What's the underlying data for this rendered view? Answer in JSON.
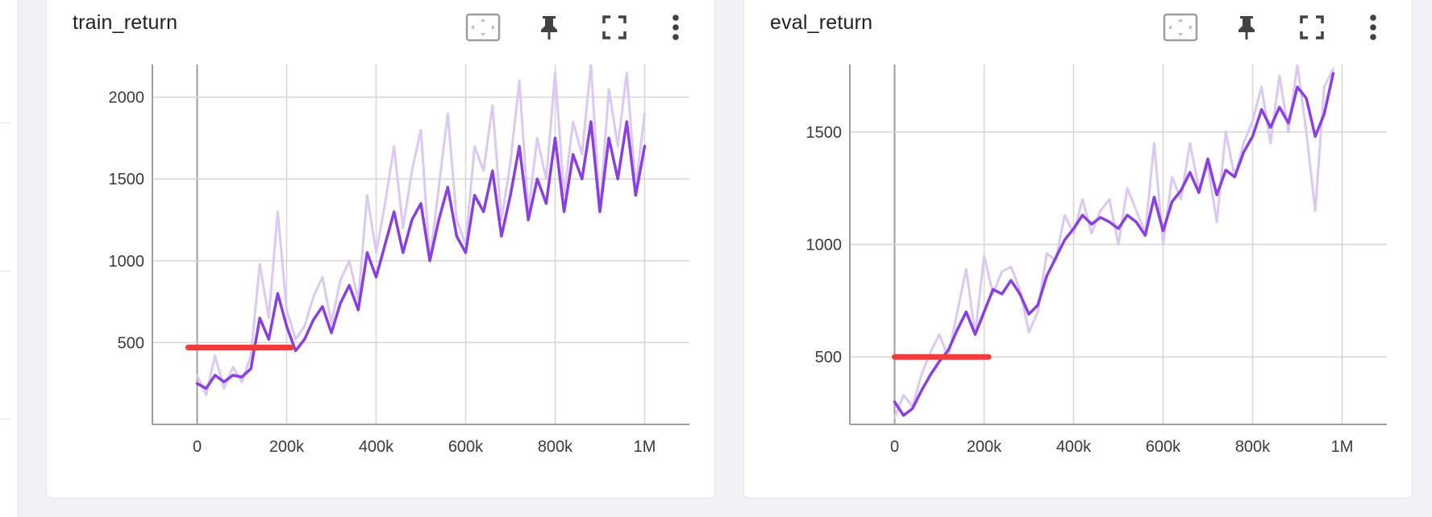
{
  "colors": {
    "raw_series": "#dcc8f4",
    "smoothed_series": "#8a3fe0",
    "annotation": "#f23c3c",
    "grid": "#d6d6d6",
    "axis": "#9e9e9e"
  },
  "toolbar": {
    "icons": [
      "fit-domain-icon",
      "pin-icon",
      "fullscreen-icon",
      "more-vert-icon"
    ]
  },
  "chart_data": [
    {
      "type": "line",
      "title": "train_return",
      "xlabel": "",
      "ylabel": "",
      "xlim": [
        -100000,
        1100000
      ],
      "ylim": [
        0,
        2200
      ],
      "x_ticks": [
        0,
        200000,
        400000,
        600000,
        800000,
        1000000
      ],
      "x_tick_labels": [
        "0",
        "200k",
        "400k",
        "600k",
        "800k",
        "1M"
      ],
      "y_ticks": [
        500,
        1000,
        1500,
        2000
      ],
      "y_tick_labels": [
        "500",
        "1000",
        "1500",
        "2000"
      ],
      "grid": true,
      "series": [
        {
          "role": "raw",
          "x": [
            0,
            20000,
            40000,
            60000,
            80000,
            100000,
            120000,
            140000,
            160000,
            180000,
            200000,
            220000,
            240000,
            260000,
            280000,
            300000,
            320000,
            340000,
            360000,
            380000,
            400000,
            420000,
            440000,
            460000,
            480000,
            500000,
            520000,
            540000,
            560000,
            580000,
            600000,
            620000,
            640000,
            660000,
            680000,
            700000,
            720000,
            740000,
            760000,
            780000,
            800000,
            820000,
            840000,
            860000,
            880000,
            900000,
            920000,
            940000,
            960000,
            980000,
            1000000
          ],
          "y": [
            300,
            180,
            420,
            220,
            350,
            260,
            420,
            980,
            650,
            1300,
            700,
            520,
            600,
            780,
            900,
            620,
            880,
            1000,
            760,
            1400,
            1050,
            1350,
            1700,
            1200,
            1550,
            1800,
            1000,
            1450,
            1900,
            1250,
            1100,
            1700,
            1550,
            1950,
            1250,
            1600,
            2100,
            1300,
            1750,
            1500,
            2150,
            1400,
            1850,
            1650,
            2200,
            1300,
            2050,
            1700,
            2150,
            1450,
            1900
          ]
        },
        {
          "role": "smoothed",
          "x": [
            0,
            20000,
            40000,
            60000,
            80000,
            100000,
            120000,
            140000,
            160000,
            180000,
            200000,
            220000,
            240000,
            260000,
            280000,
            300000,
            320000,
            340000,
            360000,
            380000,
            400000,
            420000,
            440000,
            460000,
            480000,
            500000,
            520000,
            540000,
            560000,
            580000,
            600000,
            620000,
            640000,
            660000,
            680000,
            700000,
            720000,
            740000,
            760000,
            780000,
            800000,
            820000,
            840000,
            860000,
            880000,
            900000,
            920000,
            940000,
            960000,
            980000,
            1000000
          ],
          "y": [
            250,
            220,
            300,
            260,
            300,
            290,
            340,
            650,
            520,
            800,
            600,
            450,
            520,
            640,
            720,
            560,
            740,
            850,
            700,
            1050,
            900,
            1100,
            1300,
            1050,
            1250,
            1350,
            1000,
            1250,
            1450,
            1150,
            1050,
            1400,
            1300,
            1550,
            1150,
            1400,
            1700,
            1250,
            1500,
            1350,
            1750,
            1300,
            1650,
            1500,
            1850,
            1300,
            1750,
            1500,
            1850,
            1400,
            1700
          ]
        }
      ],
      "annotation": {
        "type": "hline",
        "y": 470,
        "x_range": [
          -20000,
          210000
        ]
      }
    },
    {
      "type": "line",
      "title": "eval_return",
      "xlabel": "",
      "ylabel": "",
      "xlim": [
        -100000,
        1100000
      ],
      "ylim": [
        200,
        1800
      ],
      "x_ticks": [
        0,
        200000,
        400000,
        600000,
        800000,
        1000000
      ],
      "x_tick_labels": [
        "0",
        "200k",
        "400k",
        "600k",
        "800k",
        "1M"
      ],
      "y_ticks": [
        500,
        1000,
        1500
      ],
      "y_tick_labels": [
        "500",
        "1000",
        "1500"
      ],
      "grid": true,
      "series": [
        {
          "role": "raw",
          "x": [
            0,
            20000,
            40000,
            60000,
            80000,
            100000,
            120000,
            140000,
            160000,
            180000,
            200000,
            220000,
            240000,
            260000,
            280000,
            300000,
            320000,
            340000,
            360000,
            380000,
            400000,
            420000,
            440000,
            460000,
            480000,
            500000,
            520000,
            540000,
            560000,
            580000,
            600000,
            620000,
            640000,
            660000,
            680000,
            700000,
            720000,
            740000,
            760000,
            780000,
            800000,
            820000,
            840000,
            860000,
            880000,
            900000,
            920000,
            940000,
            960000,
            980000
          ],
          "y": [
            230,
            330,
            280,
            420,
            520,
            600,
            500,
            700,
            890,
            600,
            950,
            780,
            880,
            900,
            800,
            610,
            700,
            960,
            930,
            1130,
            1050,
            1200,
            1050,
            1150,
            1200,
            1000,
            1250,
            1150,
            1050,
            1450,
            1000,
            1300,
            1200,
            1450,
            1250,
            1350,
            1100,
            1500,
            1300,
            1450,
            1550,
            1700,
            1450,
            1750,
            1500,
            1800,
            1500,
            1150,
            1700,
            1780
          ]
        },
        {
          "role": "smoothed",
          "x": [
            0,
            20000,
            40000,
            60000,
            80000,
            100000,
            120000,
            140000,
            160000,
            180000,
            200000,
            220000,
            240000,
            260000,
            280000,
            300000,
            320000,
            340000,
            360000,
            380000,
            400000,
            420000,
            440000,
            460000,
            480000,
            500000,
            520000,
            540000,
            560000,
            580000,
            600000,
            620000,
            640000,
            660000,
            680000,
            700000,
            720000,
            740000,
            760000,
            780000,
            800000,
            820000,
            840000,
            860000,
            880000,
            900000,
            920000,
            940000,
            960000,
            980000
          ],
          "y": [
            300,
            240,
            270,
            350,
            420,
            480,
            530,
            620,
            700,
            600,
            700,
            800,
            780,
            840,
            780,
            690,
            730,
            860,
            940,
            1020,
            1070,
            1130,
            1090,
            1120,
            1100,
            1070,
            1130,
            1100,
            1040,
            1210,
            1060,
            1190,
            1240,
            1320,
            1230,
            1380,
            1220,
            1330,
            1300,
            1410,
            1480,
            1600,
            1520,
            1610,
            1540,
            1700,
            1650,
            1480,
            1580,
            1760
          ]
        }
      ],
      "annotation": {
        "type": "hline",
        "y": 500,
        "x_range": [
          0,
          210000
        ]
      }
    }
  ]
}
